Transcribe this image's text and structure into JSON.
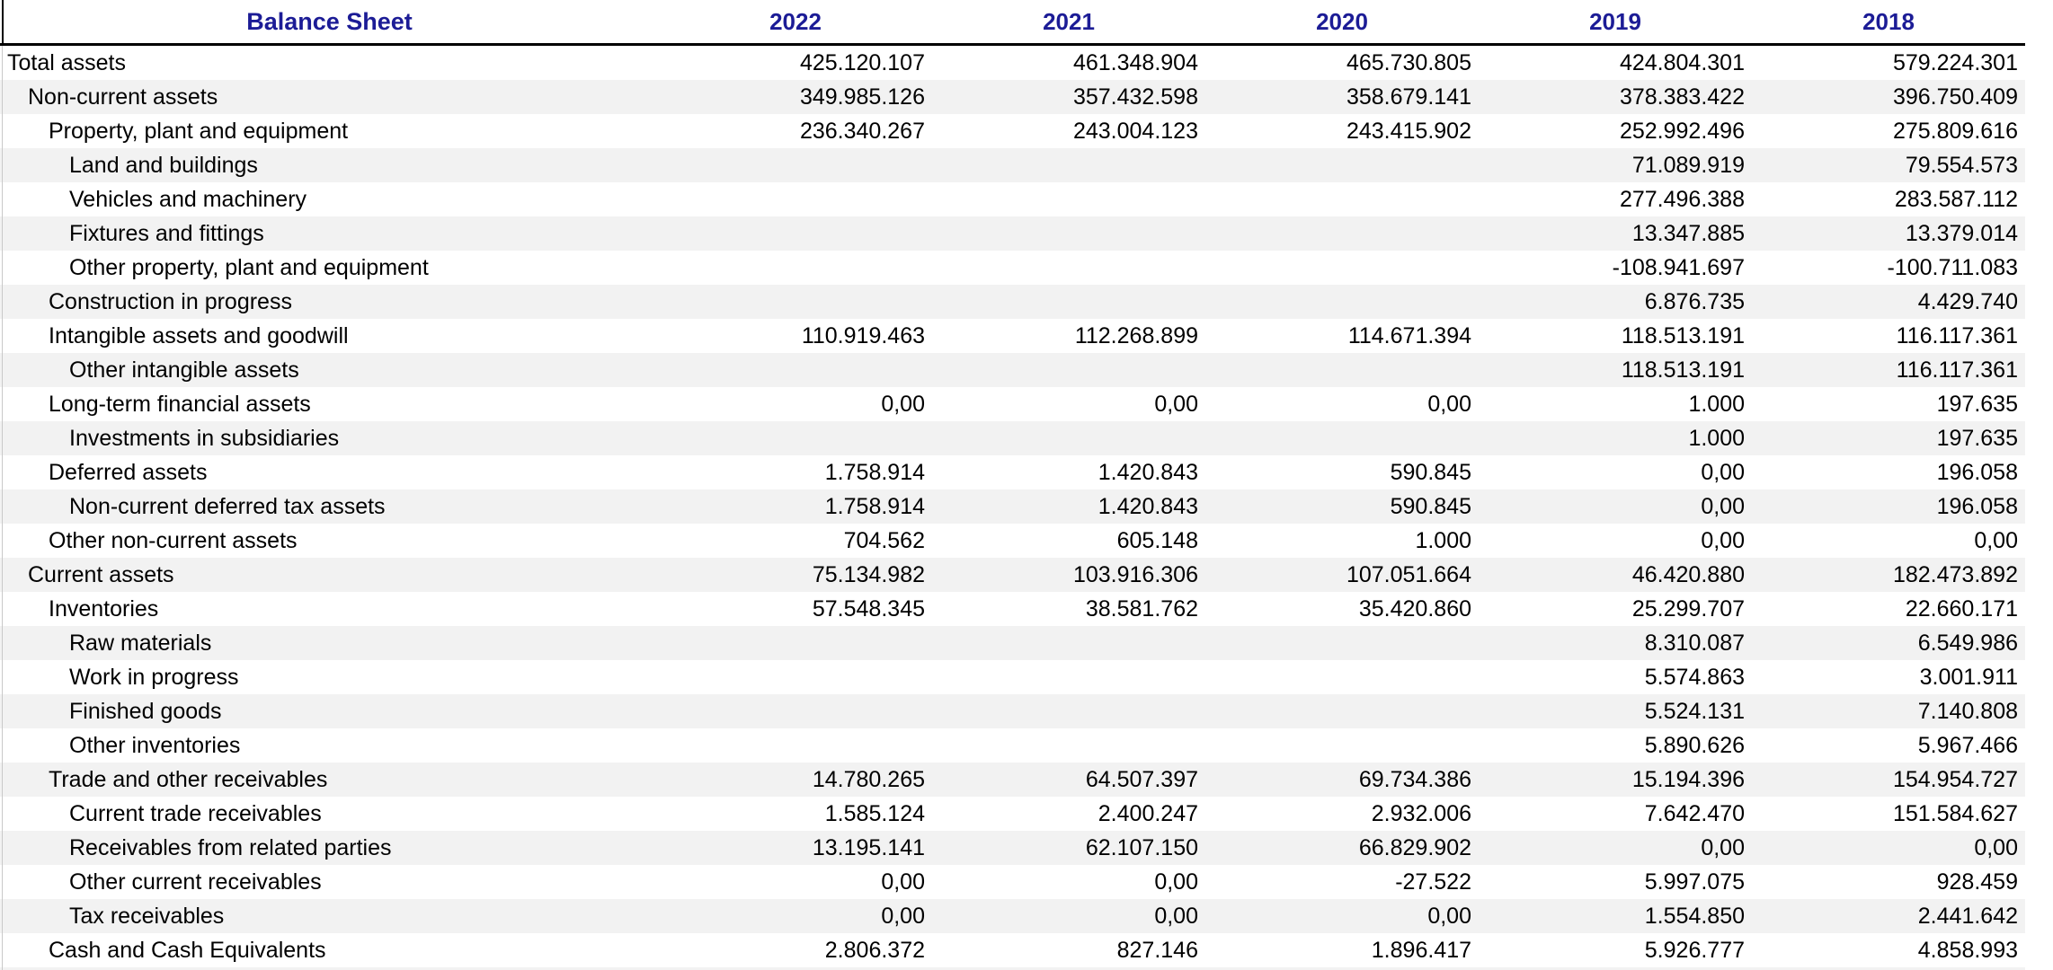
{
  "table": {
    "title": "Balance Sheet",
    "years": [
      "2022",
      "2021",
      "2020",
      "2019",
      "2018"
    ],
    "number_format": "european (dot thousands, comma decimals)",
    "colors": {
      "header_text": "#1c1c96",
      "stripe": "#f2f2f2",
      "rule": "#000000"
    },
    "rows": [
      {
        "label": "Total assets",
        "indent": 0,
        "values": [
          "425.120.107",
          "461.348.904",
          "465.730.805",
          "424.804.301",
          "579.224.301"
        ]
      },
      {
        "label": "Non-current assets",
        "indent": 1,
        "values": [
          "349.985.126",
          "357.432.598",
          "358.679.141",
          "378.383.422",
          "396.750.409"
        ]
      },
      {
        "label": "Property, plant and equipment",
        "indent": 2,
        "values": [
          "236.340.267",
          "243.004.123",
          "243.415.902",
          "252.992.496",
          "275.809.616"
        ]
      },
      {
        "label": "Land and buildings",
        "indent": 3,
        "values": [
          "",
          "",
          "",
          "71.089.919",
          "79.554.573"
        ]
      },
      {
        "label": "Vehicles and machinery",
        "indent": 3,
        "values": [
          "",
          "",
          "",
          "277.496.388",
          "283.587.112"
        ]
      },
      {
        "label": "Fixtures and fittings",
        "indent": 3,
        "values": [
          "",
          "",
          "",
          "13.347.885",
          "13.379.014"
        ]
      },
      {
        "label": "Other property, plant and equipment",
        "indent": 3,
        "values": [
          "",
          "",
          "",
          "-108.941.697",
          "-100.711.083"
        ]
      },
      {
        "label": "Construction in progress",
        "indent": 2,
        "values": [
          "",
          "",
          "",
          "6.876.735",
          "4.429.740"
        ]
      },
      {
        "label": "Intangible assets and goodwill",
        "indent": 2,
        "values": [
          "110.919.463",
          "112.268.899",
          "114.671.394",
          "118.513.191",
          "116.117.361"
        ]
      },
      {
        "label": "Other intangible assets",
        "indent": 3,
        "values": [
          "",
          "",
          "",
          "118.513.191",
          "116.117.361"
        ]
      },
      {
        "label": "Long-term financial assets",
        "indent": 2,
        "values": [
          "0,00",
          "0,00",
          "0,00",
          "1.000",
          "197.635"
        ]
      },
      {
        "label": "Investments in subsidiaries",
        "indent": 3,
        "values": [
          "",
          "",
          "",
          "1.000",
          "197.635"
        ]
      },
      {
        "label": "Deferred assets",
        "indent": 2,
        "values": [
          "1.758.914",
          "1.420.843",
          "590.845",
          "0,00",
          "196.058"
        ]
      },
      {
        "label": "Non-current deferred tax assets",
        "indent": 3,
        "values": [
          "1.758.914",
          "1.420.843",
          "590.845",
          "0,00",
          "196.058"
        ]
      },
      {
        "label": "Other non-current assets",
        "indent": 2,
        "values": [
          "704.562",
          "605.148",
          "1.000",
          "0,00",
          "0,00"
        ]
      },
      {
        "label": "Current assets",
        "indent": 1,
        "values": [
          "75.134.982",
          "103.916.306",
          "107.051.664",
          "46.420.880",
          "182.473.892"
        ]
      },
      {
        "label": "Inventories",
        "indent": 2,
        "values": [
          "57.548.345",
          "38.581.762",
          "35.420.860",
          "25.299.707",
          "22.660.171"
        ]
      },
      {
        "label": "Raw materials",
        "indent": 3,
        "values": [
          "",
          "",
          "",
          "8.310.087",
          "6.549.986"
        ]
      },
      {
        "label": "Work in progress",
        "indent": 3,
        "values": [
          "",
          "",
          "",
          "5.574.863",
          "3.001.911"
        ]
      },
      {
        "label": "Finished goods",
        "indent": 3,
        "values": [
          "",
          "",
          "",
          "5.524.131",
          "7.140.808"
        ]
      },
      {
        "label": "Other inventories",
        "indent": 3,
        "values": [
          "",
          "",
          "",
          "5.890.626",
          "5.967.466"
        ]
      },
      {
        "label": "Trade and other receivables",
        "indent": 2,
        "values": [
          "14.780.265",
          "64.507.397",
          "69.734.386",
          "15.194.396",
          "154.954.727"
        ]
      },
      {
        "label": "Current trade receivables",
        "indent": 3,
        "values": [
          "1.585.124",
          "2.400.247",
          "2.932.006",
          "7.642.470",
          "151.584.627"
        ]
      },
      {
        "label": "Receivables from related parties",
        "indent": 3,
        "values": [
          "13.195.141",
          "62.107.150",
          "66.829.902",
          "0,00",
          "0,00"
        ]
      },
      {
        "label": "Other current receivables",
        "indent": 3,
        "values": [
          "0,00",
          "0,00",
          "-27.522",
          "5.997.075",
          "928.459"
        ]
      },
      {
        "label": "Tax receivables",
        "indent": 3,
        "values": [
          "0,00",
          "0,00",
          "0,00",
          "1.554.850",
          "2.441.642"
        ]
      },
      {
        "label": "Cash and Cash Equivalents",
        "indent": 2,
        "values": [
          "2.806.372",
          "827.146",
          "1.896.417",
          "5.926.777",
          "4.858.993"
        ]
      }
    ]
  }
}
